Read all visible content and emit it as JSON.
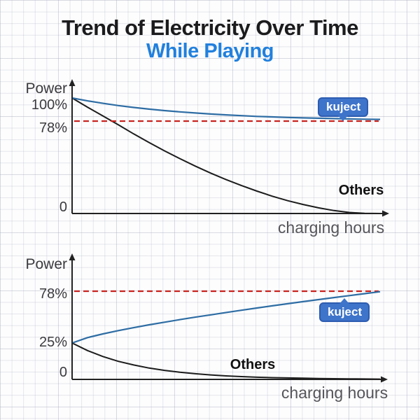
{
  "header": {
    "title": "Trend of Electricity Over Time",
    "subtitle": "While Playing"
  },
  "colors": {
    "title_text": "#1b1b1d",
    "subtitle_blue": "#2180dd",
    "kuject_line_blue": "#2e6da4",
    "others_line_black": "#1c1c1c",
    "reference_dashed_red": "#c9241f",
    "badge_blue": "#3e74ca",
    "axis_black": "#222222",
    "tick_text_gray": "#3a3a3f"
  },
  "chart_data": [
    {
      "type": "line",
      "position": "top",
      "ylabel": "Power",
      "xlabel": "charging hours",
      "xlim": [
        0,
        10
      ],
      "ylim": [
        0,
        105
      ],
      "grid": "graph-paper page background",
      "legend_position": "labels on lines",
      "yticks": [
        {
          "value": 100,
          "label": "100%"
        },
        {
          "value": 78,
          "label": "78%"
        },
        {
          "value": 0,
          "label": "0"
        }
      ],
      "reference_line": {
        "value": 78,
        "style": "dashed",
        "color": "#c9241f"
      },
      "badge": {
        "label": "kuject",
        "points_to": "kuject line"
      },
      "series": [
        {
          "name": "kuject",
          "color": "#2e6da4",
          "description": "power stays near 78% while playing",
          "x": [
            0,
            0.5,
            1,
            1.5,
            2,
            2.5,
            3,
            3.5,
            4,
            4.5,
            5,
            5.5,
            6,
            6.5,
            7,
            7.5,
            8,
            8.5,
            9,
            9.5,
            10
          ],
          "y": [
            100,
            97.3,
            94.9,
            92.8,
            91,
            89.4,
            88,
            86.8,
            85.7,
            84.7,
            83.9,
            83.2,
            82.5,
            82,
            81.5,
            81.1,
            80.7,
            80.4,
            80.1,
            79.8,
            79.6
          ]
        },
        {
          "name": "Others",
          "color": "#1c1c1c",
          "description": "power drains from 100% to 0",
          "x": [
            0,
            0.5,
            1,
            1.5,
            2,
            2.5,
            3,
            3.5,
            4,
            4.5,
            5,
            5.5,
            6,
            6.5,
            7,
            7.5,
            8,
            8.5,
            9,
            9.5,
            10
          ],
          "y": [
            100,
            91.3,
            82.9,
            74.9,
            67.2,
            59.9,
            52.9,
            46.3,
            40,
            34.1,
            28.6,
            23.6,
            18.9,
            14.6,
            10.8,
            7.6,
            4.8,
            2.5,
            0.9,
            0.1,
            0
          ]
        }
      ]
    },
    {
      "type": "line",
      "position": "bottom",
      "ylabel": "Power",
      "xlabel": "charging hours",
      "xlim": [
        0,
        10
      ],
      "ylim": [
        0,
        90
      ],
      "grid": "graph-paper page background",
      "legend_position": "labels on lines",
      "yticks": [
        {
          "value": 78,
          "label": "78%"
        },
        {
          "value": 25,
          "label": "25%"
        },
        {
          "value": 0,
          "label": "0"
        }
      ],
      "reference_line": {
        "value": 78,
        "style": "dashed",
        "color": "#c9241f"
      },
      "badge": {
        "label": "kuject",
        "points_to": "kuject line"
      },
      "series": [
        {
          "name": "kuject",
          "color": "#2e6da4",
          "description": "charges from 25% up to 78% while playing",
          "x": [
            0,
            0.5,
            1,
            1.5,
            2,
            2.5,
            3,
            3.5,
            4,
            4.5,
            5,
            5.5,
            6,
            6.5,
            7,
            7.5,
            8,
            8.5,
            9,
            9.5,
            10
          ],
          "y": [
            25,
            30.5,
            34.3,
            37.7,
            40.7,
            43.6,
            46.3,
            48.9,
            51.4,
            53.8,
            56.2,
            58.5,
            60.8,
            63,
            65.2,
            67.3,
            69.4,
            71.5,
            73.5,
            75.5,
            77.5
          ]
        },
        {
          "name": "Others",
          "color": "#1c1c1c",
          "description": "drains from 25% to 0 despite charging",
          "x": [
            0,
            0.5,
            1,
            1.5,
            2,
            2.5,
            3,
            3.5,
            4,
            4.5,
            5,
            5.5,
            6,
            6.5,
            7,
            7.5,
            8,
            8.5,
            9,
            9.5,
            10
          ],
          "y": [
            25,
            19.8,
            15.7,
            12.4,
            9.9,
            7.8,
            6.2,
            4.9,
            3.9,
            3.1,
            2.4,
            1.9,
            1.5,
            1.2,
            1,
            0.8,
            0.6,
            0.5,
            0.4,
            0.3,
            0.2
          ]
        }
      ]
    }
  ]
}
